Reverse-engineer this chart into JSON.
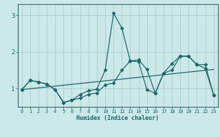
{
  "xlabel": "Humidex (Indice chaleur)",
  "bg_color": "#cce8e8",
  "grid_color": "#aacccc",
  "line_color": "#1a6666",
  "spine_color": "#336666",
  "xlim": [
    -0.5,
    23.5
  ],
  "ylim": [
    0.5,
    3.3
  ],
  "yticks": [
    1,
    2,
    3
  ],
  "xticks": [
    0,
    1,
    2,
    3,
    4,
    5,
    6,
    7,
    8,
    9,
    10,
    11,
    12,
    13,
    14,
    15,
    16,
    17,
    18,
    19,
    20,
    21,
    22,
    23
  ],
  "line1_x": [
    0,
    1,
    2,
    3,
    4,
    5,
    6,
    7,
    8,
    9,
    10,
    11,
    12,
    13,
    14,
    15,
    16,
    17,
    18,
    19,
    20,
    21,
    22,
    23
  ],
  "line1_y": [
    0.97,
    1.22,
    1.18,
    1.12,
    0.97,
    0.62,
    0.68,
    0.74,
    0.84,
    0.88,
    1.1,
    1.15,
    1.5,
    1.75,
    1.78,
    1.52,
    0.87,
    1.42,
    1.5,
    1.88,
    1.88,
    1.65,
    1.55,
    0.82
  ],
  "line2_x": [
    0,
    1,
    2,
    3,
    4,
    5,
    6,
    7,
    8,
    9,
    10,
    11,
    12,
    13,
    14,
    15,
    16,
    17,
    18,
    19,
    20,
    21,
    22,
    23
  ],
  "line2_y": [
    0.97,
    1.22,
    1.18,
    1.12,
    0.97,
    0.62,
    0.68,
    0.84,
    0.94,
    0.98,
    1.5,
    3.05,
    2.65,
    1.75,
    1.73,
    0.97,
    0.87,
    1.42,
    1.68,
    1.88,
    1.88,
    1.65,
    1.65,
    0.82
  ],
  "line3_x": [
    0,
    23
  ],
  "line3_y": [
    0.97,
    1.52
  ]
}
